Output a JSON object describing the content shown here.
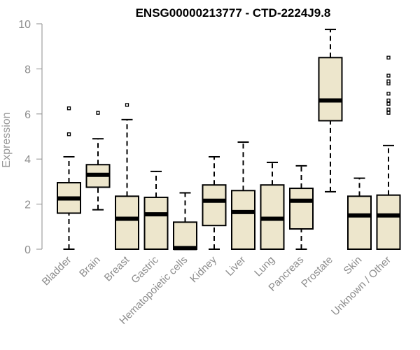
{
  "chart_data": {
    "type": "box",
    "title": "ENSG00000213777 - CTD-2224J9.8",
    "xlabel": "",
    "ylabel": "Expression",
    "ylim": [
      0,
      10
    ],
    "yticks": [
      0,
      2,
      4,
      6,
      8,
      10
    ],
    "grid": false,
    "box_color": "#ede6cc",
    "categories": [
      "Bladder",
      "Brain",
      "Breast",
      "Gastric",
      "Hematopoietic cells",
      "Kidney",
      "Liver",
      "Lung",
      "Pancreas",
      "Prostate",
      "Skin",
      "Unknown / Other"
    ],
    "boxes": [
      {
        "whisker_low": 0.0,
        "q1": 1.6,
        "median": 2.25,
        "q3": 2.95,
        "whisker_high": 4.1,
        "outliers": [
          5.1,
          6.25
        ]
      },
      {
        "whisker_low": 1.75,
        "q1": 2.75,
        "median": 3.3,
        "q3": 3.75,
        "whisker_high": 4.9,
        "outliers": [
          6.05
        ]
      },
      {
        "whisker_low": 0.0,
        "q1": 0.0,
        "median": 1.35,
        "q3": 2.35,
        "whisker_high": 5.75,
        "outliers": [
          6.4
        ]
      },
      {
        "whisker_low": 0.0,
        "q1": 0.0,
        "median": 1.55,
        "q3": 2.3,
        "whisker_high": 3.45,
        "outliers": []
      },
      {
        "whisker_low": 0.0,
        "q1": 0.0,
        "median": 0.05,
        "q3": 1.2,
        "whisker_high": 2.5,
        "outliers": []
      },
      {
        "whisker_low": 0.0,
        "q1": 1.05,
        "median": 2.15,
        "q3": 2.85,
        "whisker_high": 4.1,
        "outliers": []
      },
      {
        "whisker_low": 0.0,
        "q1": 0.0,
        "median": 1.65,
        "q3": 2.6,
        "whisker_high": 4.75,
        "outliers": []
      },
      {
        "whisker_low": 0.0,
        "q1": 0.0,
        "median": 1.35,
        "q3": 2.85,
        "whisker_high": 3.85,
        "outliers": []
      },
      {
        "whisker_low": 0.0,
        "q1": 0.9,
        "median": 2.15,
        "q3": 2.7,
        "whisker_high": 3.7,
        "outliers": []
      },
      {
        "whisker_low": 2.55,
        "q1": 5.7,
        "median": 6.6,
        "q3": 8.5,
        "whisker_high": 9.75,
        "outliers": []
      },
      {
        "whisker_low": 0.0,
        "q1": 0.0,
        "median": 1.5,
        "q3": 2.35,
        "whisker_high": 3.15,
        "outliers": []
      },
      {
        "whisker_low": 0.0,
        "q1": 0.0,
        "median": 1.5,
        "q3": 2.4,
        "whisker_high": 4.6,
        "outliers": [
          6.05,
          6.2,
          6.45,
          6.6,
          6.9,
          7.35,
          7.45,
          7.7,
          8.5
        ]
      }
    ]
  }
}
